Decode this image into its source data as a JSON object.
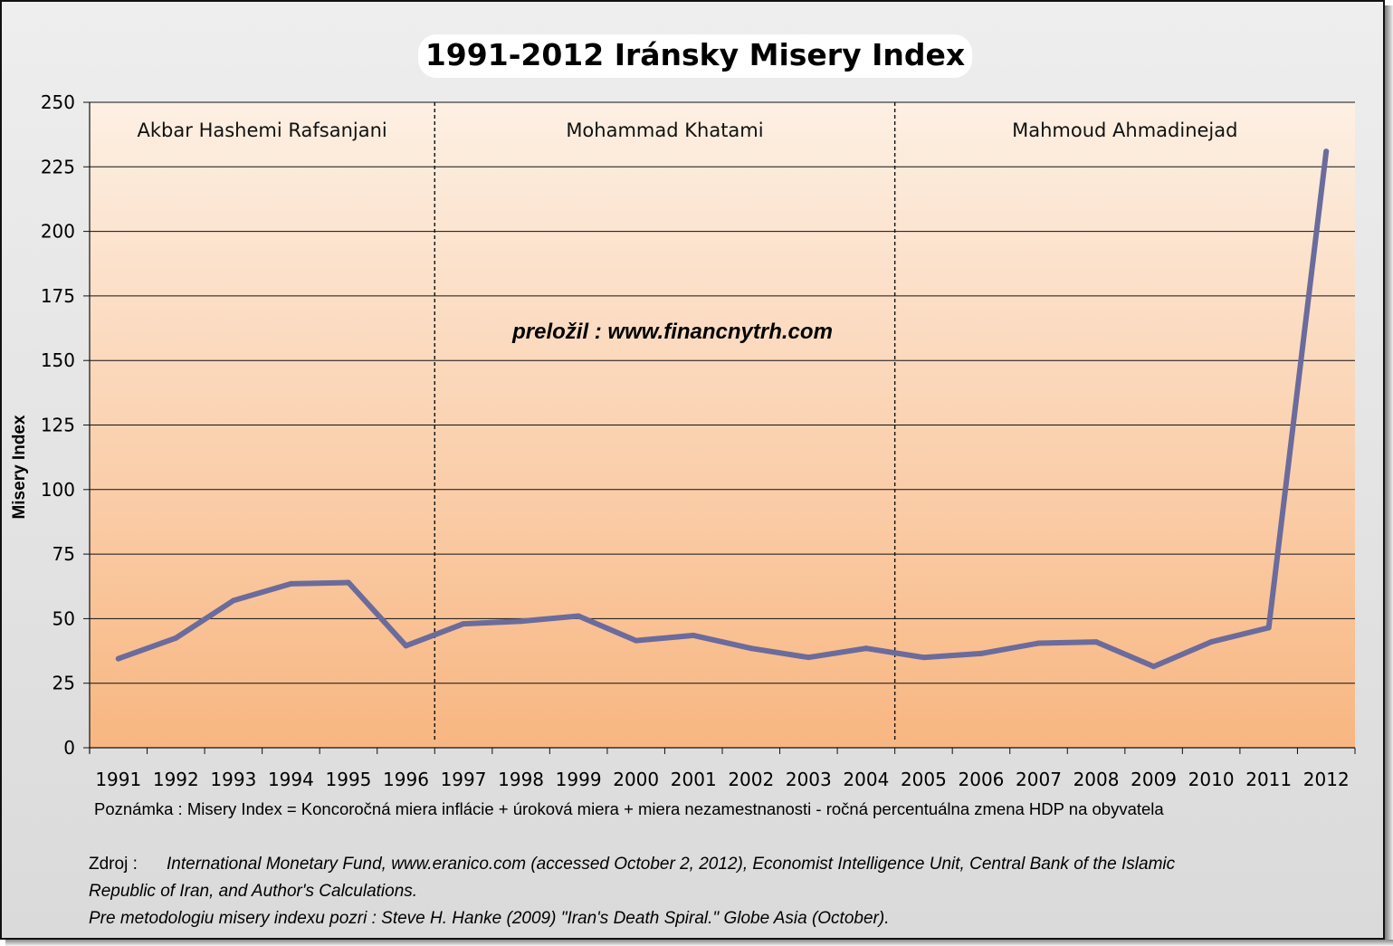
{
  "chart_data": {
    "type": "line",
    "title": "1991-2012 Iránsky Misery Index",
    "ylabel": "Misery Index",
    "xlabel": "",
    "ylim": [
      0,
      250
    ],
    "yticks": [
      "0",
      "25",
      "50",
      "75",
      "100",
      "125",
      "150",
      "175",
      "200",
      "225",
      "250"
    ],
    "categories": [
      "1991",
      "1992",
      "1993",
      "1994",
      "1995",
      "1996",
      "1997",
      "1998",
      "1999",
      "2000",
      "2001",
      "2002",
      "2003",
      "2004",
      "2005",
      "2006",
      "2007",
      "2008",
      "2009",
      "2010",
      "2011",
      "2012"
    ],
    "series": [
      {
        "values": [
          34.5,
          42.5,
          57.0,
          63.5,
          64.0,
          39.5,
          48.0,
          49.0,
          51.0,
          41.5,
          43.5,
          38.5,
          35.0,
          38.5,
          35.0,
          36.5,
          40.5,
          41.0,
          31.5,
          41.0,
          46.5,
          231.0
        ],
        "color": "#6b6b9c"
      }
    ],
    "grid": true,
    "legend": "none",
    "periods": [
      {
        "label": "Akbar Hashemi Rafsanjani",
        "from": "1991",
        "to": "1996"
      },
      {
        "label": "Mohammad Khatami",
        "from": "1997",
        "to": "2004"
      },
      {
        "label": "Mahmoud Ahmadinejad",
        "from": "2005",
        "to": "2012"
      }
    ],
    "annotation": "preložil : www.financnytrh.com"
  },
  "colors": {
    "line": "#6b6b9c",
    "plot_top": "#fdf0e4",
    "plot_bottom": "#f8b681",
    "grid": "#111111"
  },
  "note": "Poznámka : Misery Index = Koncoročná miera inflácie + úroková miera + miera nezamestnanosti  - ročná percentuálna zmena HDP na obyvatela",
  "source": {
    "label": "Zdroj :",
    "text": "International Monetary Fund, www.eranico.com (accessed October 2, 2012), Economist Intelligence Unit, Central Bank of the Islamic",
    "text2": "Republic of Iran, and Author's Calculations.",
    "methodology": "Pre metodologiu misery indexu pozri : Steve H. Hanke (2009) \"Iran's Death Spiral.\" Globe Asia (October)."
  }
}
